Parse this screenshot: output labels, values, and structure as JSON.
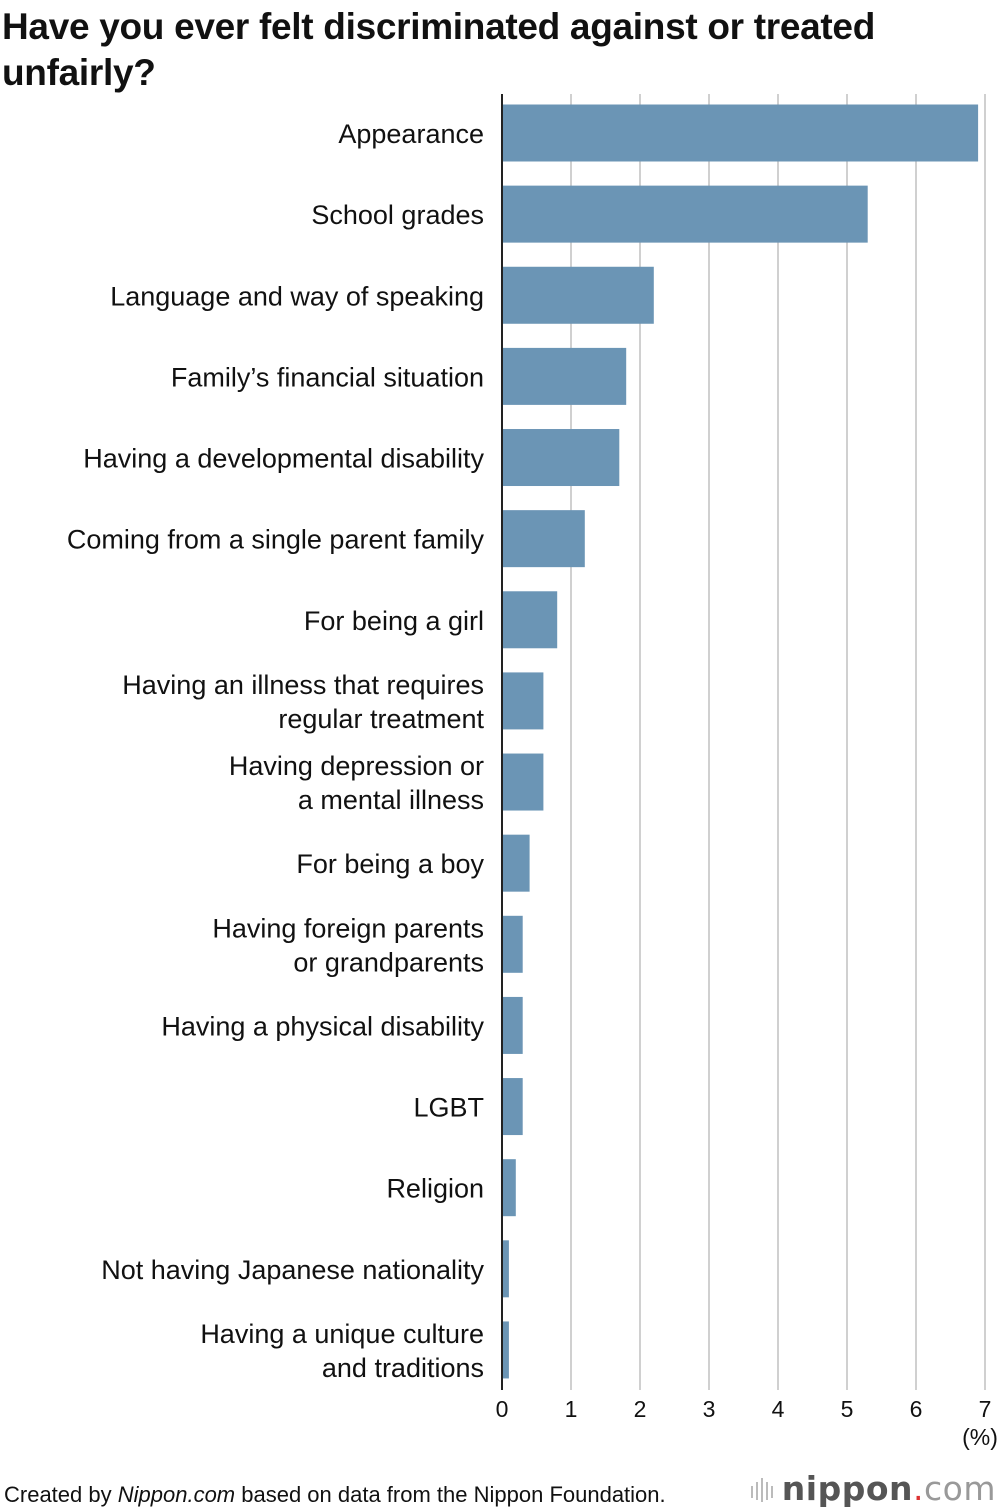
{
  "chart_data": {
    "type": "bar",
    "orientation": "horizontal",
    "title": "Have you ever felt discriminated against or treated unfairly?",
    "categories": [
      [
        "Appearance"
      ],
      [
        "School grades"
      ],
      [
        "Language and way of speaking"
      ],
      [
        "Family’s financial situation"
      ],
      [
        "Having a developmental disability"
      ],
      [
        "Coming from a single parent family"
      ],
      [
        "For being a girl"
      ],
      [
        "Having an illness that requires",
        "regular treatment"
      ],
      [
        "Having depression or",
        "a mental illness"
      ],
      [
        "For being a boy"
      ],
      [
        "Having foreign parents",
        "or grandparents"
      ],
      [
        "Having a physical disability"
      ],
      [
        "LGBT"
      ],
      [
        "Religion"
      ],
      [
        "Not having Japanese nationality"
      ],
      [
        "Having a unique culture",
        "and traditions"
      ]
    ],
    "values": [
      6.9,
      5.3,
      2.2,
      1.8,
      1.7,
      1.2,
      0.8,
      0.6,
      0.6,
      0.4,
      0.3,
      0.3,
      0.3,
      0.2,
      0.1,
      0.1
    ],
    "xlim": [
      0,
      7
    ],
    "xticks": [
      "0",
      "1",
      "2",
      "3",
      "4",
      "5",
      "6",
      "7"
    ],
    "xunit": "(%)",
    "xlabel": "",
    "ylabel": "",
    "grid": true,
    "bar_color": "#6b95b5"
  },
  "footer": {
    "prefix": "Created by ",
    "publisher": "Nippon.com",
    "suffix": " based on data from the Nippon Foundation."
  },
  "logo": {
    "name": "nippon",
    "dot": ".",
    "tld": "com"
  }
}
